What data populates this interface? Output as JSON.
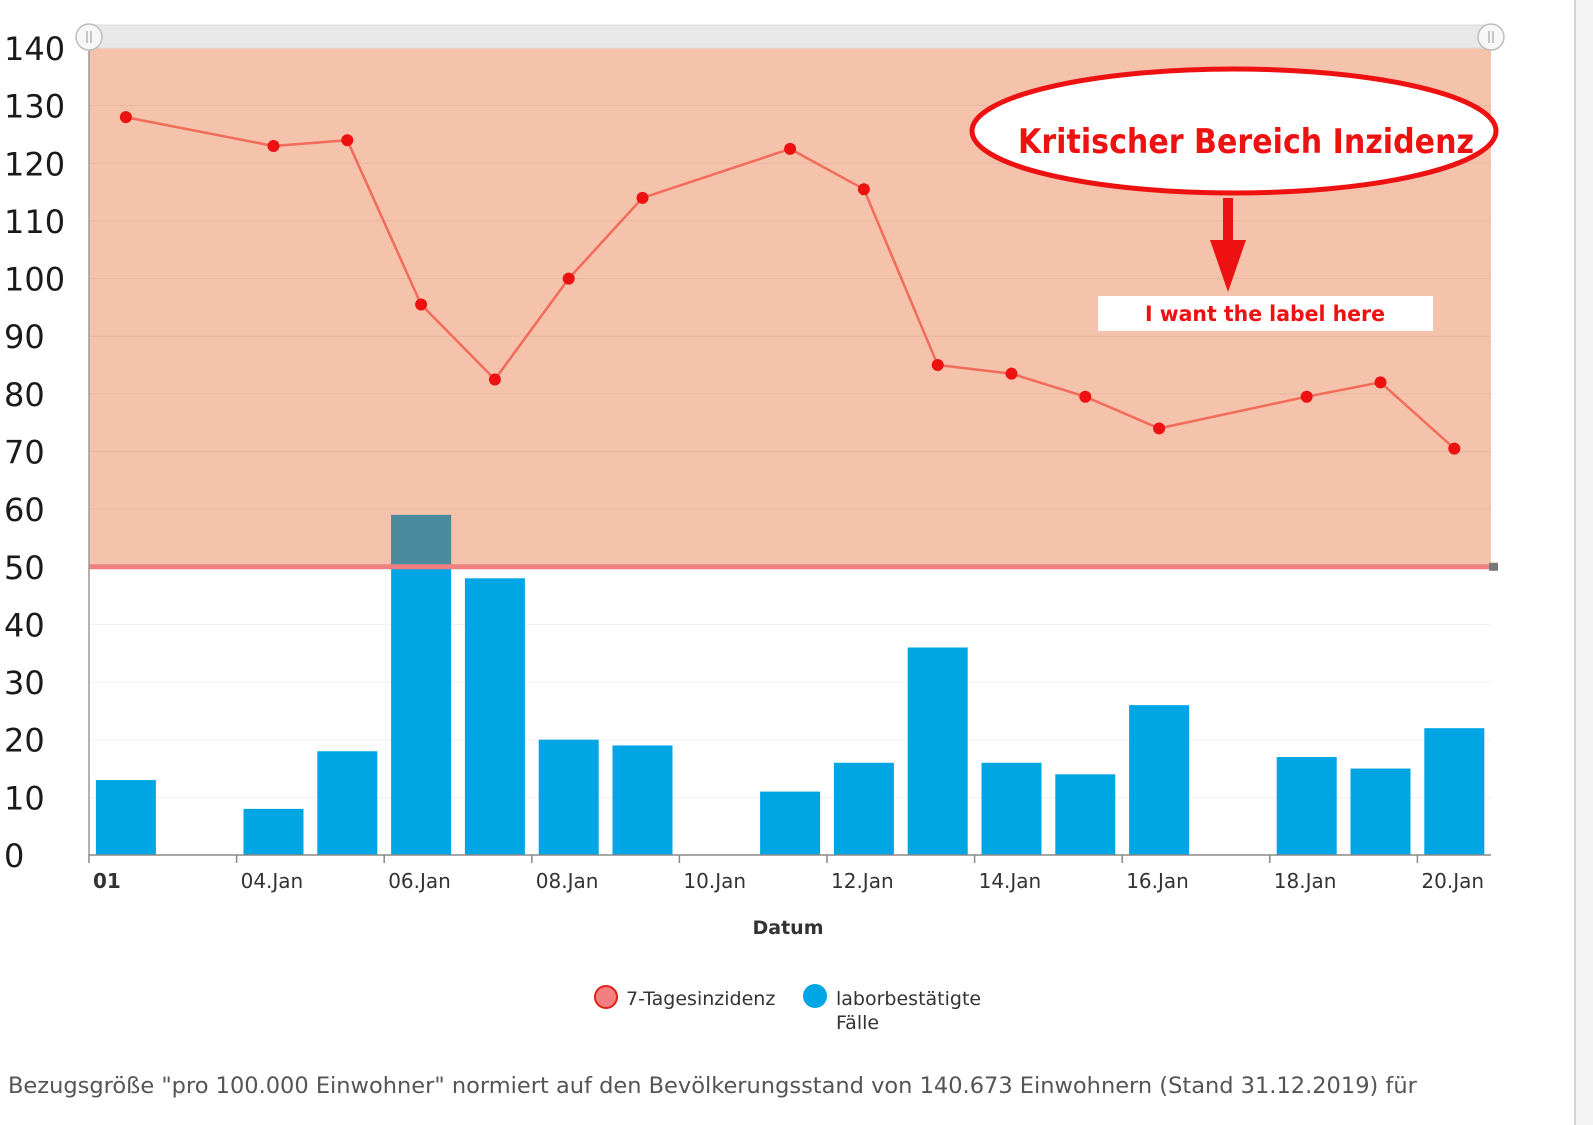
{
  "chart_data": {
    "type": "bar",
    "x_label": "Datum",
    "ylim": [
      0,
      140
    ],
    "y_ticks": [
      0,
      10,
      20,
      30,
      40,
      50,
      60,
      70,
      80,
      90,
      100,
      110,
      120,
      130,
      140
    ],
    "x_tick_labels": [
      "01",
      "04.Jan",
      "06.Jan",
      "08.Jan",
      "10.Jan",
      "12.Jan",
      "14.Jan",
      "16.Jan",
      "18.Jan",
      "20.Jan"
    ],
    "x_tick_days": [
      1,
      3,
      5,
      7,
      9,
      11,
      13,
      15,
      17,
      19
    ],
    "grid": true,
    "legend_position": "bottom",
    "critical_area": {
      "from": 50,
      "to": 140,
      "color": "#f5c3ac",
      "threshold_color": "#f08080"
    },
    "series": [
      {
        "name": "7-Tagesinzidenz",
        "type": "line",
        "color": "#f26b5b",
        "marker_color": "#ee1111",
        "points": [
          {
            "day": 1,
            "value": 128
          },
          {
            "day": 3,
            "value": 123
          },
          {
            "day": 4,
            "value": 124
          },
          {
            "day": 5,
            "value": 95.5
          },
          {
            "day": 6,
            "value": 82.5
          },
          {
            "day": 7,
            "value": 100
          },
          {
            "day": 8,
            "value": 114
          },
          {
            "day": 10,
            "value": 122.5
          },
          {
            "day": 11,
            "value": 115.5
          },
          {
            "day": 12,
            "value": 85
          },
          {
            "day": 13,
            "value": 83.5
          },
          {
            "day": 14,
            "value": 79.5
          },
          {
            "day": 15,
            "value": 74
          },
          {
            "day": 17,
            "value": 79.5
          },
          {
            "day": 18,
            "value": 82
          },
          {
            "day": 19,
            "value": 70.5
          }
        ]
      },
      {
        "name": "laborbestätigte Fälle",
        "type": "bar",
        "color": "#00a6e3",
        "points": [
          {
            "day": 1,
            "value": 13
          },
          {
            "day": 3,
            "value": 8
          },
          {
            "day": 4,
            "value": 18
          },
          {
            "day": 5,
            "value": 59
          },
          {
            "day": 6,
            "value": 48
          },
          {
            "day": 7,
            "value": 20
          },
          {
            "day": 8,
            "value": 19
          },
          {
            "day": 10,
            "value": 11
          },
          {
            "day": 11,
            "value": 16
          },
          {
            "day": 12,
            "value": 36
          },
          {
            "day": 13,
            "value": 16
          },
          {
            "day": 14,
            "value": 14
          },
          {
            "day": 15,
            "value": 26
          },
          {
            "day": 17,
            "value": 17
          },
          {
            "day": 18,
            "value": 15
          },
          {
            "day": 19,
            "value": 22
          }
        ]
      }
    ],
    "legend": [
      {
        "label": "7-Tagesinzidenz",
        "color": "#f28080",
        "border": "#e0201a"
      },
      {
        "label_lines": [
          "laborbestätigte",
          "Fälle"
        ],
        "color": "#00a6e3",
        "border": "#00a6e3"
      }
    ],
    "annotations": {
      "critical_label": "Kritischer Bereich Inzidenz",
      "target_label": "I want the label here",
      "annotation_color": "#ee1111"
    }
  },
  "footnote": "Bezugsgröße \"pro 100.000 Einwohner\" normiert auf den Bevölkerungsstand von 140.673 Einwohnern (Stand 31.12.2019) für"
}
